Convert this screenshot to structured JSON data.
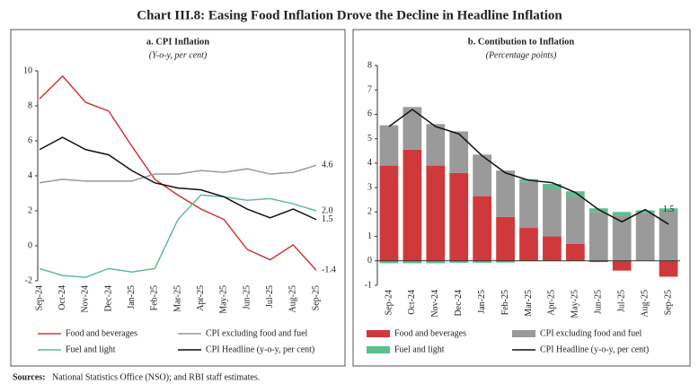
{
  "title": "Chart III.8: Easing Food Inflation Drove the Decline in Headline Inflation",
  "source": {
    "label": "Sources:",
    "text": "National Statistics Office (NSO); and RBI staff estimates."
  },
  "chart_data": [
    {
      "type": "line",
      "title": "a. CPI Inflation",
      "subtitle": "(Y-o-y, per cent)",
      "categories": [
        "Sep-24",
        "Oct-24",
        "Nov-24",
        "Dec-24",
        "Jan-25",
        "Feb-25",
        "Mar-25",
        "Apr-25",
        "May-25",
        "Jun-25",
        "Jul-25",
        "Aug-25",
        "Sep-25"
      ],
      "ylim": [
        -2,
        10
      ],
      "yticks": [
        -2,
        0,
        2,
        4,
        6,
        8,
        10
      ],
      "series": [
        {
          "name": "Food and beverages",
          "color": "#d0393b",
          "values": [
            8.4,
            9.7,
            8.2,
            7.7,
            5.7,
            3.8,
            2.9,
            2.1,
            1.5,
            -0.2,
            -0.8,
            0.05,
            -1.4
          ],
          "value_labels": [
            null,
            null,
            null,
            null,
            null,
            null,
            null,
            null,
            null,
            null,
            null,
            null,
            "-1.4"
          ]
        },
        {
          "name": "CPI excluding food and fuel",
          "color": "#999999",
          "values": [
            3.6,
            3.8,
            3.7,
            3.7,
            3.7,
            4.1,
            4.1,
            4.3,
            4.2,
            4.4,
            4.1,
            4.2,
            4.6
          ],
          "value_labels": [
            null,
            null,
            null,
            null,
            null,
            null,
            null,
            null,
            null,
            null,
            null,
            null,
            "4.6"
          ]
        },
        {
          "name": "Fuel and light",
          "color": "#5cbf8f",
          "values": [
            -1.3,
            -1.7,
            -1.8,
            -1.3,
            -1.5,
            -1.3,
            1.5,
            2.9,
            2.8,
            2.6,
            2.7,
            2.4,
            2.0
          ],
          "value_labels": [
            null,
            null,
            null,
            null,
            null,
            null,
            null,
            null,
            null,
            null,
            null,
            null,
            "2.0"
          ]
        },
        {
          "name": "CPI Headline (y-o-y, per cent)",
          "color": "#111111",
          "values": [
            5.5,
            6.2,
            5.5,
            5.2,
            4.3,
            3.6,
            3.3,
            3.2,
            2.8,
            2.1,
            1.6,
            2.1,
            1.5
          ],
          "value_labels": [
            null,
            null,
            null,
            null,
            null,
            null,
            null,
            null,
            null,
            null,
            null,
            null,
            "1.5"
          ]
        }
      ]
    },
    {
      "type": "bar",
      "stacked": true,
      "title": "b. Contibution to Inflation",
      "subtitle": "(Percentage points)",
      "categories": [
        "Sep-24",
        "Oct-24",
        "Nov-24",
        "Dec-24",
        "Jan-25",
        "Feb-25",
        "Mar-25",
        "Apr-25",
        "May-25",
        "Jun-25",
        "Jul-25",
        "Aug-25",
        "Sep-25"
      ],
      "ylim": [
        -1,
        8
      ],
      "yticks": [
        -1,
        0,
        1,
        2,
        3,
        4,
        5,
        6,
        7,
        8
      ],
      "series": [
        {
          "name": "Food and beverages",
          "color": "#d0393b",
          "values": [
            3.9,
            4.55,
            3.9,
            3.6,
            2.65,
            1.8,
            1.35,
            1.0,
            0.7,
            -0.05,
            -0.4,
            0.02,
            -0.65
          ]
        },
        {
          "name": "CPI excluding food and fuel",
          "color": "#9a9a9a",
          "values": [
            1.65,
            1.75,
            1.7,
            1.7,
            1.7,
            1.9,
            1.9,
            1.95,
            1.95,
            2.0,
            1.85,
            1.95,
            2.05
          ]
        },
        {
          "name": "Fuel and light",
          "color": "#5cbf8f",
          "values": [
            -0.1,
            -0.1,
            -0.1,
            -0.08,
            -0.08,
            -0.07,
            0.1,
            0.2,
            0.2,
            0.15,
            0.15,
            0.1,
            0.1
          ]
        },
        {
          "name": "CPI Headline (y-o-y, per cent)",
          "type": "line",
          "color": "#111111",
          "values": [
            5.5,
            6.2,
            5.5,
            5.2,
            4.3,
            3.6,
            3.3,
            3.2,
            2.8,
            2.1,
            1.6,
            2.1,
            1.5
          ],
          "value_labels": [
            null,
            null,
            null,
            null,
            null,
            null,
            null,
            null,
            null,
            null,
            null,
            null,
            "1.5"
          ]
        }
      ]
    }
  ]
}
